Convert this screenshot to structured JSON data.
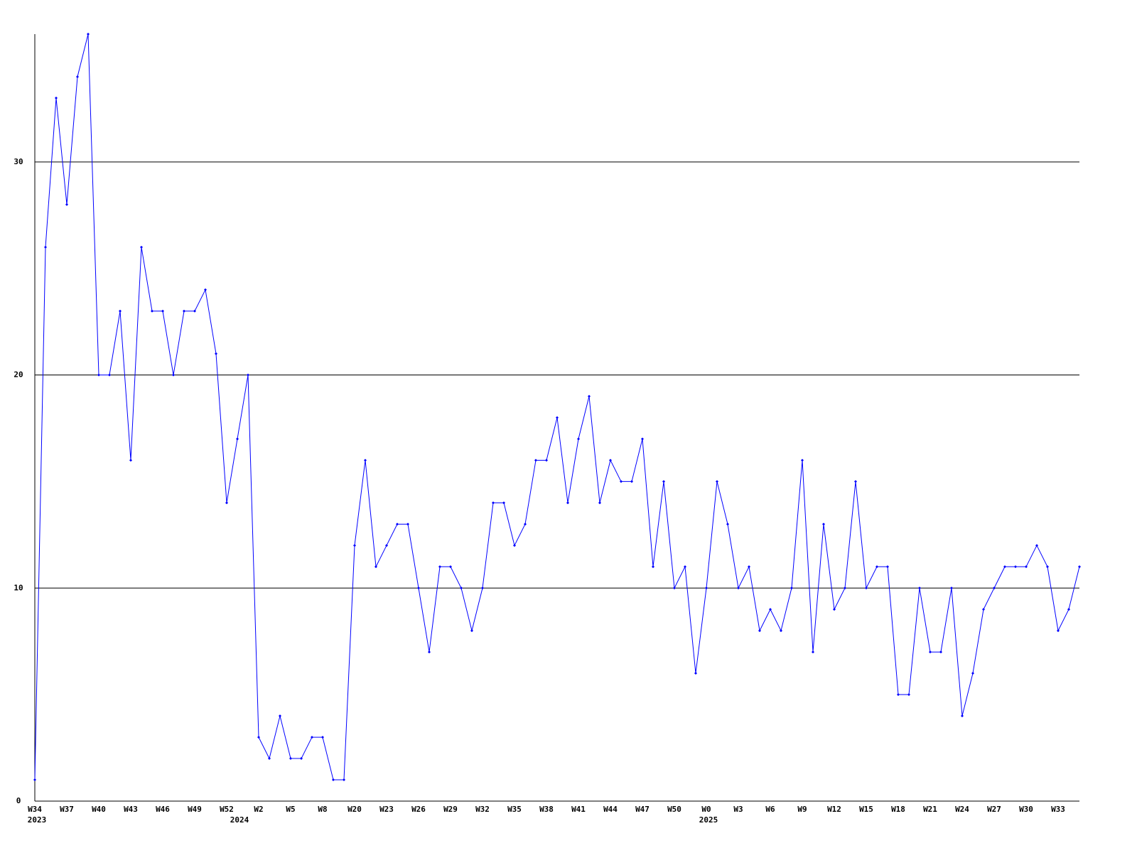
{
  "chart_data": {
    "type": "line",
    "categories": [
      "W34",
      null,
      null,
      "W37",
      null,
      null,
      "W40",
      null,
      null,
      "W43",
      null,
      null,
      "W46",
      null,
      null,
      "W49",
      null,
      null,
      "W52",
      null,
      null,
      "W2",
      null,
      null,
      "W5",
      null,
      null,
      "W8",
      null,
      null,
      "W20",
      null,
      null,
      "W23",
      null,
      null,
      "W26",
      null,
      null,
      "W29",
      null,
      null,
      "W32",
      null,
      null,
      "W35",
      null,
      null,
      "W38",
      null,
      null,
      "W41",
      null,
      null,
      "W44",
      null,
      null,
      "W47",
      null,
      null,
      "W50",
      null,
      null,
      "W0",
      null,
      null,
      "W3",
      null,
      null,
      "W6",
      null,
      null,
      "W9",
      null,
      null,
      "W12",
      null,
      null,
      "W15",
      null,
      null,
      "W18",
      null,
      null,
      "W21",
      null,
      null,
      "W24",
      null,
      null,
      "W27",
      null,
      null,
      "W30",
      null,
      null,
      "W33",
      null,
      null
    ],
    "year_labels": [
      "2023",
      null,
      null,
      null,
      null,
      null,
      null,
      null,
      null,
      null,
      null,
      null,
      null,
      null,
      null,
      null,
      null,
      null,
      null,
      "2024",
      null,
      null,
      null,
      null,
      null,
      null,
      null,
      null,
      null,
      null,
      null,
      null,
      null,
      null,
      null,
      null,
      null,
      null,
      null,
      null,
      null,
      null,
      null,
      null,
      null,
      null,
      null,
      null,
      null,
      null,
      null,
      null,
      null,
      null,
      null,
      null,
      null,
      null,
      null,
      null,
      null,
      null,
      null,
      "2025",
      null,
      null,
      null,
      null,
      null,
      null,
      null,
      null,
      null,
      null,
      null,
      null,
      null,
      null,
      null,
      null,
      null,
      null,
      null,
      null,
      null,
      null,
      null,
      null,
      null,
      null,
      null,
      null,
      null,
      null,
      null,
      null,
      null
    ],
    "series": [
      {
        "color": "#0000ff",
        "values": [
          1,
          26,
          33,
          28,
          34,
          36,
          20,
          20,
          23,
          16,
          26,
          23,
          23,
          20,
          23,
          23,
          24,
          21,
          14,
          17,
          20,
          3,
          2,
          4,
          2,
          2,
          3,
          3,
          1,
          1,
          12,
          16,
          11,
          12,
          13,
          13,
          10,
          7,
          11,
          11,
          10,
          8,
          10,
          14,
          14,
          12,
          13,
          16,
          16,
          18,
          14,
          17,
          19,
          14,
          16,
          15,
          15,
          17,
          11,
          15,
          10,
          11,
          6,
          10,
          15,
          13,
          10,
          11,
          8,
          9,
          8,
          10,
          16,
          7,
          13,
          9,
          10,
          15,
          10,
          11,
          11,
          5,
          5,
          10,
          7,
          7,
          10,
          4,
          6,
          9,
          10,
          11,
          11,
          11,
          12,
          11,
          8,
          9,
          11
        ]
      }
    ],
    "ylim": [
      0,
      36
    ],
    "yticks": [
      0,
      10,
      20,
      30
    ],
    "grid": true
  }
}
